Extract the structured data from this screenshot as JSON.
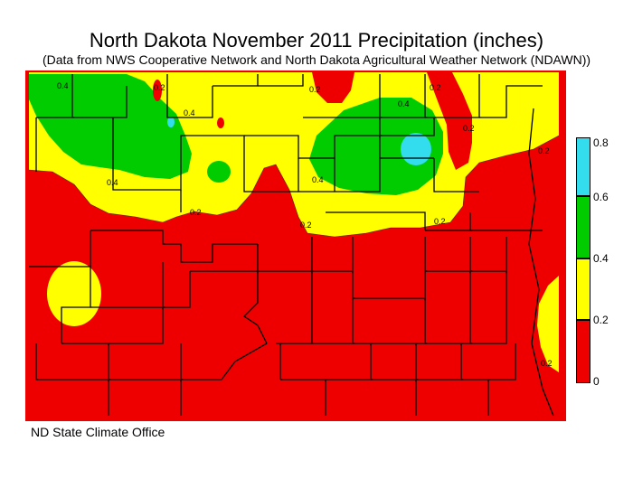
{
  "title": "North Dakota November 2011 Precipitation (inches)",
  "subtitle": "(Data from NWS Cooperative Network and North Dakota Agricultural Weather Network (NDAWN))",
  "credit": "ND State Climate Office",
  "legend": {
    "bins": [
      {
        "from": "0",
        "to": "0.2",
        "color": "#ee0000"
      },
      {
        "from": "0.2",
        "to": "0.4",
        "color": "#ffff00"
      },
      {
        "from": "0.4",
        "to": "0.6",
        "color": "#00cc00"
      },
      {
        "from": "0.6",
        "to": "0.8",
        "color": "#33ddee"
      }
    ],
    "labels": [
      "0.8",
      "0.6",
      "0.4",
      "0.2",
      "0"
    ]
  },
  "contour_labels": [
    "0.4",
    "0.2",
    "0.4",
    "0.2",
    "0.4",
    "0.2",
    "0.4",
    "0.2",
    "0.4",
    "0.2",
    "0.2",
    "0.2",
    "0.2",
    "0.2"
  ]
}
